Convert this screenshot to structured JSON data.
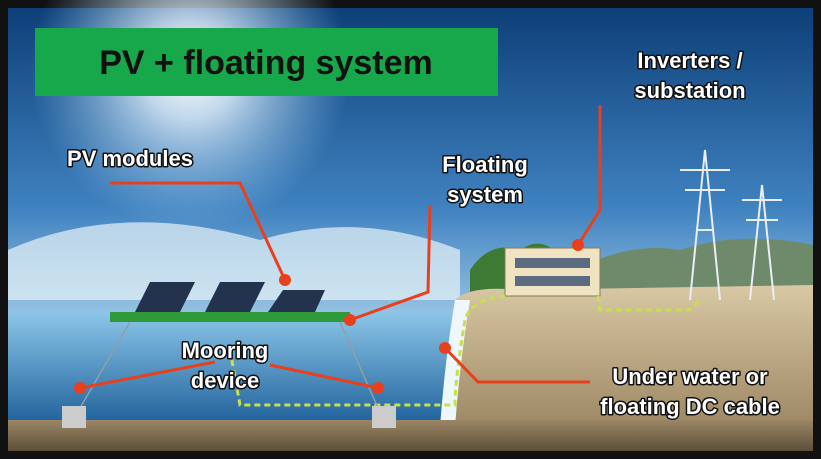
{
  "title": "PV + floating system",
  "labels": [
    {
      "lines": [
        "PV modules"
      ]
    },
    {
      "lines": [
        "Floating",
        "system"
      ]
    },
    {
      "lines": [
        "Inverters /",
        "substation"
      ]
    },
    {
      "lines": [
        "Mooring",
        "device"
      ]
    },
    {
      "lines": [
        "Under water or",
        "floating DC cable"
      ]
    }
  ]
}
